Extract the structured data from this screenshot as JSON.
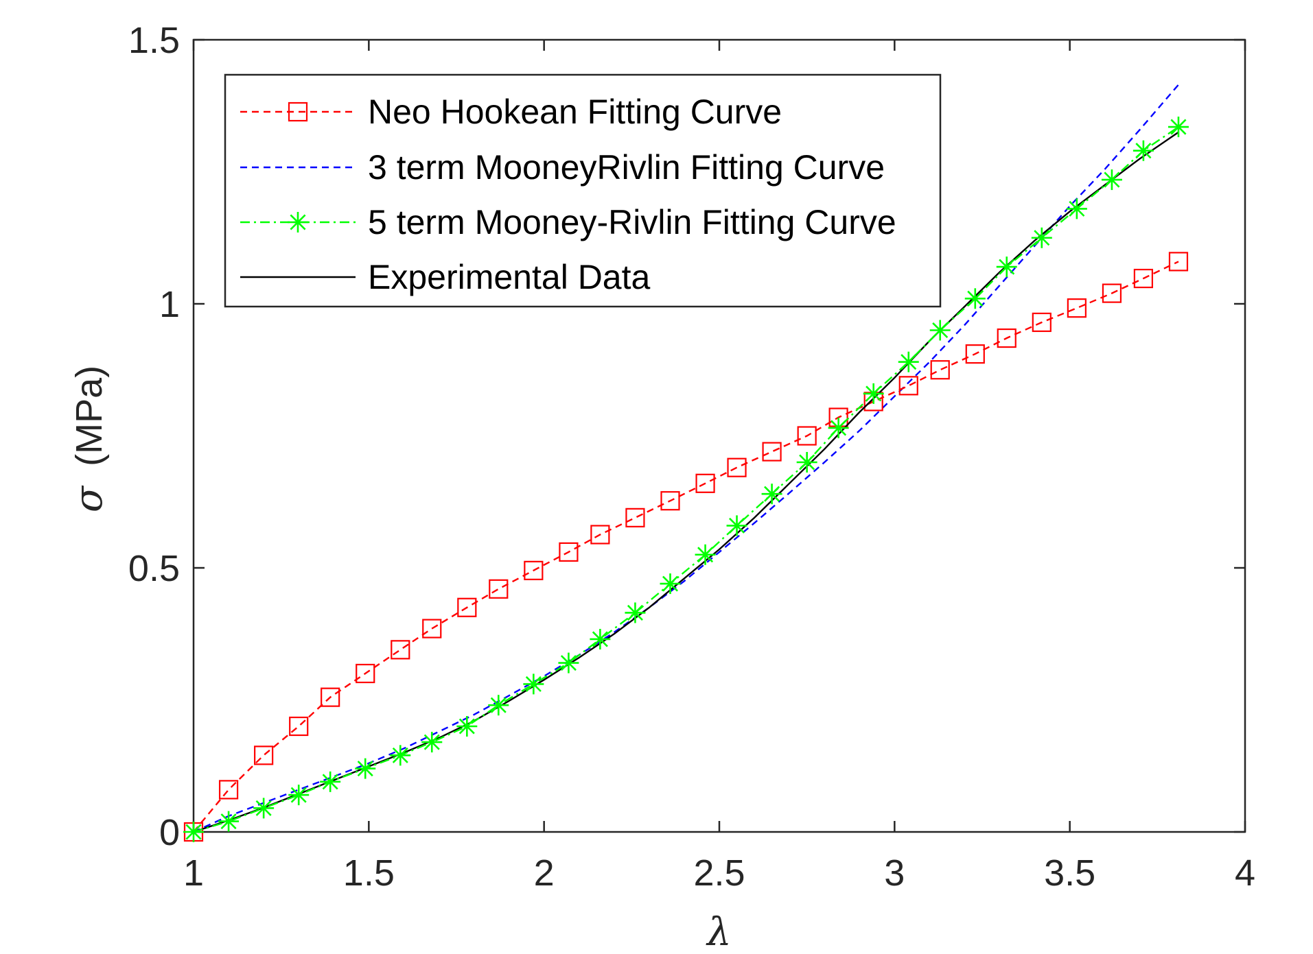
{
  "chart_data": {
    "type": "line",
    "title": "",
    "xlabel": "λ",
    "ylabel_symbol": "σ",
    "ylabel_unit": "(MPa)",
    "xlim": [
      1,
      4
    ],
    "ylim": [
      0,
      1.5
    ],
    "xticks": [
      1,
      1.5,
      2,
      2.5,
      3,
      3.5,
      4
    ],
    "xtick_labels": [
      "1",
      "1.5",
      "2",
      "2.5",
      "3",
      "3.5",
      "4"
    ],
    "yticks": [
      0,
      0.5,
      1,
      1.5
    ],
    "ytick_labels": [
      "0",
      "0.5",
      "1",
      "1.5"
    ],
    "grid": false,
    "legend_position": "top-left",
    "series": [
      {
        "name": "Neo Hookean Fitting Curve",
        "color": "#ff0000",
        "line_style": "dashed",
        "marker": "square",
        "x": [
          1.0,
          1.1,
          1.2,
          1.3,
          1.39,
          1.49,
          1.59,
          1.68,
          1.78,
          1.87,
          1.97,
          2.07,
          2.16,
          2.26,
          2.36,
          2.46,
          2.55,
          2.65,
          2.75,
          2.84,
          2.94,
          3.04,
          3.13,
          3.23,
          3.32,
          3.42,
          3.52,
          3.62,
          3.71,
          3.81
        ],
        "y": [
          0.0,
          0.08,
          0.145,
          0.2,
          0.255,
          0.3,
          0.345,
          0.385,
          0.425,
          0.46,
          0.495,
          0.53,
          0.563,
          0.595,
          0.627,
          0.66,
          0.69,
          0.72,
          0.75,
          0.785,
          0.815,
          0.845,
          0.875,
          0.905,
          0.935,
          0.965,
          0.992,
          1.02,
          1.048,
          1.08
        ]
      },
      {
        "name": "3 term MooneyRivlin Fitting Curve",
        "color": "#0000ff",
        "line_style": "dashed",
        "marker": "none",
        "x": [
          1.0,
          1.1,
          1.2,
          1.3,
          1.4,
          1.5,
          1.6,
          1.7,
          1.8,
          1.9,
          2.0,
          2.1,
          2.2,
          2.3,
          2.4,
          2.5,
          2.6,
          2.7,
          2.8,
          2.9,
          3.0,
          3.1,
          3.2,
          3.3,
          3.4,
          3.5,
          3.6,
          3.7,
          3.81
        ],
        "y": [
          0.0,
          0.03,
          0.055,
          0.08,
          0.105,
          0.13,
          0.158,
          0.19,
          0.222,
          0.258,
          0.295,
          0.335,
          0.378,
          0.425,
          0.475,
          0.53,
          0.585,
          0.642,
          0.7,
          0.76,
          0.825,
          0.89,
          0.96,
          1.035,
          1.11,
          1.185,
          1.255,
          1.33,
          1.415
        ]
      },
      {
        "name": "5 term Mooney-Rivlin Fitting Curve",
        "color": "#00ff00",
        "line_style": "dashdot",
        "marker": "asterisk",
        "x": [
          1.0,
          1.1,
          1.2,
          1.3,
          1.39,
          1.49,
          1.59,
          1.68,
          1.78,
          1.87,
          1.97,
          2.07,
          2.16,
          2.26,
          2.36,
          2.46,
          2.55,
          2.65,
          2.75,
          2.84,
          2.94,
          3.04,
          3.13,
          3.23,
          3.32,
          3.42,
          3.52,
          3.62,
          3.71,
          3.81
        ],
        "y": [
          0.0,
          0.02,
          0.045,
          0.07,
          0.095,
          0.12,
          0.145,
          0.17,
          0.2,
          0.24,
          0.28,
          0.32,
          0.365,
          0.415,
          0.47,
          0.525,
          0.58,
          0.64,
          0.7,
          0.765,
          0.83,
          0.89,
          0.95,
          1.01,
          1.07,
          1.125,
          1.18,
          1.235,
          1.29,
          1.335
        ]
      },
      {
        "name": "Experimental Data",
        "color": "#000000",
        "line_style": "solid",
        "marker": "none",
        "x": [
          1.0,
          1.1,
          1.2,
          1.3,
          1.4,
          1.5,
          1.6,
          1.7,
          1.8,
          1.9,
          2.0,
          2.1,
          2.2,
          2.3,
          2.4,
          2.5,
          2.6,
          2.7,
          2.8,
          2.9,
          3.0,
          3.1,
          3.2,
          3.3,
          3.4,
          3.5,
          3.6,
          3.7,
          3.81
        ],
        "y": [
          0.0,
          0.022,
          0.046,
          0.072,
          0.098,
          0.124,
          0.15,
          0.178,
          0.21,
          0.248,
          0.288,
          0.33,
          0.375,
          0.425,
          0.48,
          0.535,
          0.595,
          0.66,
          0.725,
          0.795,
          0.86,
          0.93,
          0.995,
          1.06,
          1.12,
          1.175,
          1.225,
          1.275,
          1.325
        ]
      }
    ]
  }
}
